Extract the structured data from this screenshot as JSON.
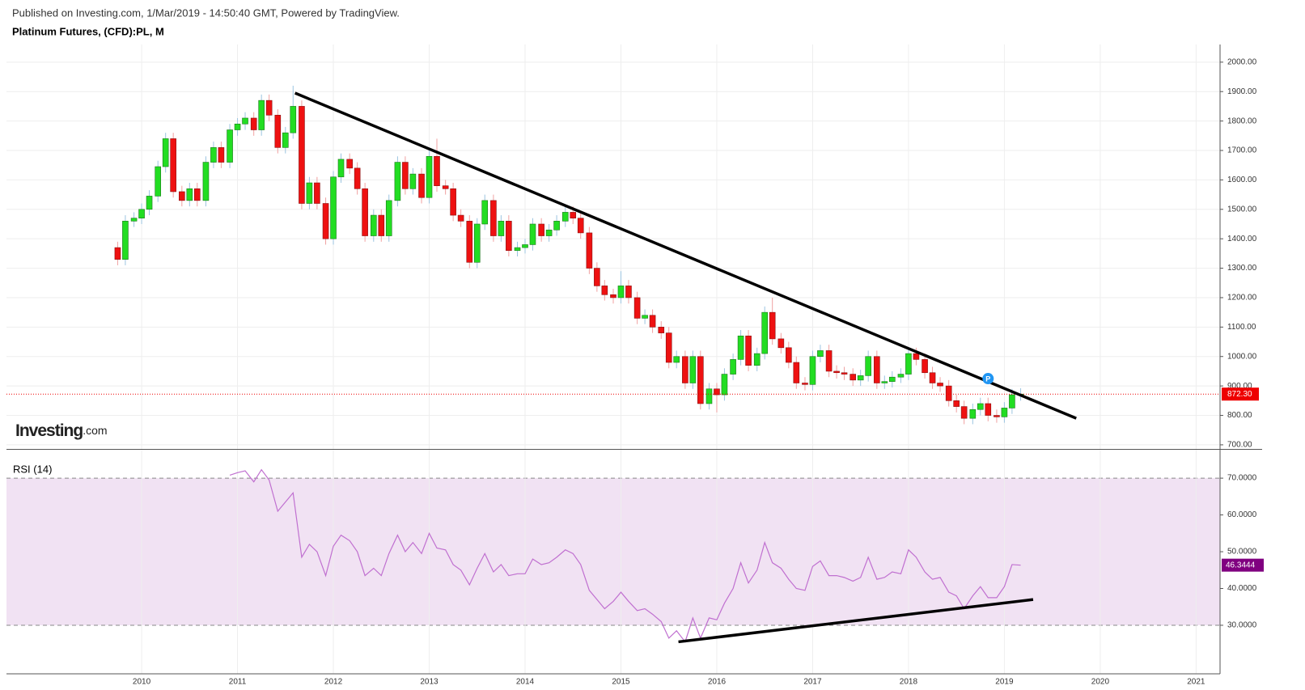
{
  "chart_data": [
    {
      "type": "candlestick",
      "source": "Published on Investing.com, 1/Mar/2019 - 14:50:40 GMT, Powered by TradingView.",
      "title": "Platinum Futures, (CFD):PL, M",
      "logo": "Investing",
      "logo_suffix": ".com",
      "x": [
        2009.75,
        2009.83,
        2009.92,
        2010,
        2010.08,
        2010.17,
        2010.25,
        2010.33,
        2010.42,
        2010.5,
        2010.58,
        2010.67,
        2010.75,
        2010.83,
        2010.92,
        2011,
        2011.08,
        2011.17,
        2011.25,
        2011.33,
        2011.42,
        2011.5,
        2011.58,
        2011.67,
        2011.75,
        2011.83,
        2011.92,
        2012,
        2012.08,
        2012.17,
        2012.25,
        2012.33,
        2012.42,
        2012.5,
        2012.58,
        2012.67,
        2012.75,
        2012.83,
        2012.92,
        2013,
        2013.08,
        2013.17,
        2013.25,
        2013.33,
        2013.42,
        2013.5,
        2013.58,
        2013.67,
        2013.75,
        2013.83,
        2013.92,
        2014,
        2014.08,
        2014.17,
        2014.25,
        2014.33,
        2014.42,
        2014.5,
        2014.58,
        2014.67,
        2014.75,
        2014.83,
        2014.92,
        2015,
        2015.08,
        2015.17,
        2015.25,
        2015.33,
        2015.42,
        2015.5,
        2015.58,
        2015.67,
        2015.75,
        2015.83,
        2015.92,
        2016,
        2016.08,
        2016.17,
        2016.25,
        2016.33,
        2016.42,
        2016.5,
        2016.58,
        2016.67,
        2016.75,
        2016.83,
        2016.92,
        2017,
        2017.08,
        2017.17,
        2017.25,
        2017.33,
        2017.42,
        2017.5,
        2017.58,
        2017.67,
        2017.75,
        2017.83,
        2017.92,
        2018,
        2018.08,
        2018.17,
        2018.25,
        2018.33,
        2018.42,
        2018.5,
        2018.58,
        2018.67,
        2018.75,
        2018.83,
        2018.92,
        2019,
        2019.08,
        2019.17
      ],
      "open": [
        1370,
        1330,
        1460,
        1470,
        1500,
        1545,
        1645,
        1740,
        1560,
        1530,
        1570,
        1530,
        1660,
        1710,
        1660,
        1770,
        1790,
        1810,
        1770,
        1870,
        1820,
        1710,
        1760,
        1850,
        1520,
        1590,
        1520,
        1400,
        1610,
        1670,
        1640,
        1570,
        1410,
        1480,
        1410,
        1530,
        1660,
        1570,
        1620,
        1540,
        1680,
        1580,
        1570,
        1480,
        1460,
        1320,
        1450,
        1530,
        1410,
        1460,
        1360,
        1370,
        1380,
        1450,
        1410,
        1430,
        1460,
        1490,
        1470,
        1420,
        1300,
        1240,
        1210,
        1200,
        1240,
        1200,
        1130,
        1140,
        1100,
        1080,
        980,
        1000,
        910,
        1000,
        840,
        890,
        870,
        940,
        990,
        1070,
        970,
        1010,
        1150,
        1060,
        1030,
        980,
        910,
        905,
        1000,
        1020,
        950,
        945,
        940,
        920,
        935,
        1000,
        910,
        915,
        930,
        940,
        1010,
        990,
        945,
        910,
        900,
        850,
        830,
        790,
        820,
        840,
        800,
        795,
        825,
        870
      ],
      "high": [
        1390,
        1480,
        1490,
        1520,
        1565,
        1665,
        1760,
        1760,
        1580,
        1590,
        1590,
        1680,
        1730,
        1730,
        1790,
        1810,
        1830,
        1830,
        1890,
        1890,
        1840,
        1780,
        1920,
        1870,
        1610,
        1610,
        1540,
        1630,
        1690,
        1690,
        1660,
        1590,
        1500,
        1500,
        1550,
        1680,
        1680,
        1640,
        1640,
        1700,
        1740,
        1600,
        1590,
        1500,
        1480,
        1470,
        1550,
        1550,
        1480,
        1480,
        1390,
        1400,
        1470,
        1470,
        1450,
        1480,
        1510,
        1510,
        1490,
        1440,
        1320,
        1260,
        1230,
        1290,
        1260,
        1220,
        1160,
        1160,
        1120,
        1100,
        1020,
        1020,
        1020,
        1020,
        910,
        910,
        960,
        1010,
        1090,
        1090,
        1030,
        1170,
        1200,
        1080,
        1050,
        1000,
        930,
        1020,
        1040,
        1040,
        970,
        965,
        960,
        955,
        1020,
        1020,
        935,
        950,
        960,
        1030,
        1030,
        1010,
        965,
        930,
        920,
        870,
        850,
        840,
        860,
        860,
        820,
        845,
        890,
        892.3
      ],
      "low": [
        1310,
        1310,
        1440,
        1450,
        1480,
        1525,
        1625,
        1540,
        1510,
        1510,
        1510,
        1510,
        1640,
        1640,
        1640,
        1750,
        1770,
        1750,
        1750,
        1800,
        1690,
        1690,
        1740,
        1500,
        1500,
        1500,
        1380,
        1380,
        1590,
        1620,
        1550,
        1390,
        1390,
        1390,
        1390,
        1510,
        1550,
        1550,
        1520,
        1520,
        1560,
        1550,
        1460,
        1440,
        1300,
        1300,
        1430,
        1390,
        1390,
        1340,
        1340,
        1350,
        1360,
        1390,
        1390,
        1410,
        1440,
        1450,
        1400,
        1280,
        1220,
        1190,
        1180,
        1180,
        1180,
        1110,
        1110,
        1080,
        1060,
        960,
        960,
        890,
        890,
        820,
        820,
        810,
        850,
        920,
        970,
        950,
        950,
        990,
        1040,
        1010,
        960,
        890,
        885,
        885,
        980,
        930,
        925,
        920,
        900,
        900,
        915,
        890,
        890,
        895,
        910,
        920,
        970,
        925,
        890,
        880,
        830,
        810,
        770,
        770,
        800,
        780,
        775,
        775,
        805,
        850
      ],
      "close": [
        1330,
        1460,
        1470,
        1500,
        1545,
        1645,
        1740,
        1560,
        1530,
        1570,
        1530,
        1660,
        1710,
        1660,
        1770,
        1790,
        1810,
        1770,
        1870,
        1820,
        1710,
        1760,
        1850,
        1520,
        1590,
        1520,
        1400,
        1610,
        1670,
        1640,
        1570,
        1410,
        1480,
        1410,
        1530,
        1660,
        1570,
        1620,
        1540,
        1680,
        1580,
        1570,
        1480,
        1460,
        1320,
        1450,
        1530,
        1410,
        1460,
        1360,
        1370,
        1380,
        1450,
        1410,
        1430,
        1460,
        1490,
        1470,
        1420,
        1300,
        1240,
        1210,
        1200,
        1240,
        1200,
        1130,
        1140,
        1100,
        1080,
        980,
        1000,
        910,
        1000,
        840,
        890,
        870,
        940,
        990,
        1070,
        970,
        1010,
        1150,
        1060,
        1030,
        980,
        910,
        905,
        1000,
        1020,
        950,
        945,
        940,
        920,
        935,
        1000,
        910,
        915,
        930,
        940,
        1010,
        990,
        945,
        910,
        900,
        850,
        830,
        790,
        820,
        840,
        800,
        795,
        825,
        870,
        872.3
      ],
      "up_color": "#22dd22",
      "down_color": "#ee1111",
      "xlim": [
        2008.59,
        2021.25
      ],
      "xticks": [
        2010,
        2011,
        2012,
        2013,
        2014,
        2015,
        2016,
        2017,
        2018,
        2019,
        2020,
        2021
      ],
      "ylim": [
        686,
        2060
      ],
      "yticks": [
        {
          "value": 700,
          "label": "700.00"
        },
        {
          "value": 800,
          "label": "800.00"
        },
        {
          "value": 900,
          "label": "900.00"
        },
        {
          "value": 1000,
          "label": "1000.00"
        },
        {
          "value": 1100,
          "label": "1100.00"
        },
        {
          "value": 1200,
          "label": "1200.00"
        },
        {
          "value": 1300,
          "label": "1300.00"
        },
        {
          "value": 1400,
          "label": "1400.00"
        },
        {
          "value": 1500,
          "label": "1500.00"
        },
        {
          "value": 1600,
          "label": "1600.00"
        },
        {
          "value": 1700,
          "label": "1700.00"
        },
        {
          "value": 1800,
          "label": "1800.00"
        },
        {
          "value": 1900,
          "label": "1900.00"
        },
        {
          "value": 2000,
          "label": "2000.00"
        }
      ],
      "grid": true,
      "last_price": {
        "value": 872.3,
        "label": "872.30"
      },
      "trendlines": [
        {
          "x": [
            2011.6,
            2019.75
          ],
          "y": [
            1895,
            790
          ]
        }
      ],
      "markers": [
        {
          "x": 2018.83,
          "y": 925,
          "label": "P"
        }
      ]
    },
    {
      "type": "line",
      "title": "RSI (14)",
      "color": "#c070d0",
      "values": [
        null,
        null,
        null,
        null,
        null,
        null,
        null,
        null,
        null,
        null,
        null,
        null,
        null,
        null,
        70.8,
        71.5,
        72,
        69,
        72.3,
        69.5,
        61,
        63.5,
        66,
        48.5,
        52,
        50,
        43.5,
        51.5,
        54.5,
        53,
        50,
        43.5,
        45.5,
        43.5,
        49.5,
        54.5,
        50,
        52.5,
        49.5,
        55,
        51,
        50.5,
        46.5,
        45,
        41,
        45.5,
        49.5,
        44.5,
        46.5,
        43.5,
        44,
        44,
        48,
        46.5,
        47,
        48.5,
        50.5,
        49.5,
        46.5,
        39.5,
        37,
        34.5,
        36.5,
        39,
        36.5,
        34,
        34.5,
        33,
        31,
        26.5,
        28.5,
        25.5,
        32,
        26.5,
        32,
        31.5,
        36,
        40,
        47,
        41.5,
        45,
        52.5,
        47,
        45.5,
        42.5,
        40,
        39.5,
        46,
        47.5,
        43.5,
        43.5,
        43,
        42,
        43,
        48.5,
        42.5,
        43,
        44.5,
        44,
        50.5,
        48.5,
        44.5,
        42.5,
        43,
        39,
        38,
        34.5,
        38,
        40.5,
        37.5,
        37.5,
        40.5,
        46.5,
        46.3444
      ],
      "ylim": [
        16.8,
        77.5
      ],
      "yticks": [
        {
          "value": 30,
          "label": "30.0000"
        },
        {
          "value": 40,
          "label": "40.0000"
        },
        {
          "value": 50,
          "label": "50.0000"
        },
        {
          "value": 60,
          "label": "60.0000"
        },
        {
          "value": 70,
          "label": "70.0000"
        }
      ],
      "band": [
        30,
        70
      ],
      "band_color": "#f1e2f3",
      "trendlines": [
        {
          "x": [
            2015.6,
            2019.3
          ],
          "y": [
            25.5,
            37
          ]
        }
      ]
    }
  ]
}
